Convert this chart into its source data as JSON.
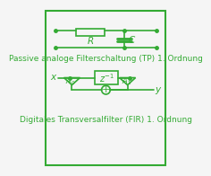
{
  "bg_color": "#f5f5f5",
  "border_color": "#33aa33",
  "line_color": "#33aa33",
  "text_color": "#33aa33",
  "title1": "Passive analoge Filterschaltung (TP) 1. Ordnung",
  "title2": "Digitales Transversalfilter (FIR) 1. Ordnung",
  "font_size_title": 6.5,
  "font_size_label": 7.5
}
